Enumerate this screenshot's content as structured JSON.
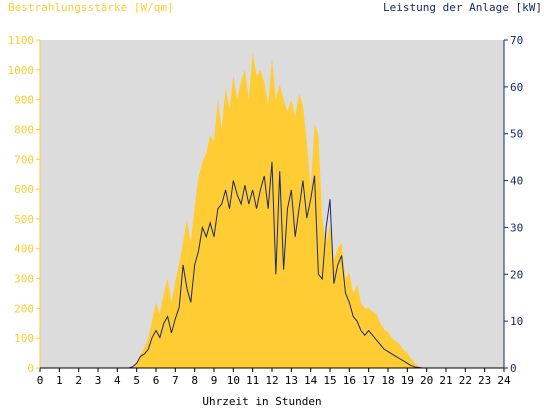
{
  "chart_data": {
    "type": "area",
    "left_axis_title": "Bestrahlungsstärke [W/qm]",
    "right_axis_title": "Leistung der Anlage [kW]",
    "xlabel": "Uhrzeit in Stunden",
    "xlim": [
      0,
      24
    ],
    "ylim_left": [
      0,
      1100
    ],
    "ylim_right": [
      0,
      70
    ],
    "x_ticks": [
      "0",
      "1",
      "2",
      "3",
      "4",
      "5",
      "6",
      "7",
      "8",
      "9",
      "10",
      "11",
      "12",
      "13",
      "14",
      "15",
      "16",
      "17",
      "18",
      "19",
      "20",
      "21",
      "22",
      "23",
      "24"
    ],
    "y_ticks_left": [
      "0",
      "100",
      "200",
      "300",
      "400",
      "500",
      "600",
      "700",
      "800",
      "900",
      "1000",
      "1100"
    ],
    "y_ticks_right": [
      "0",
      "10",
      "20",
      "30",
      "40",
      "50",
      "60",
      "70"
    ],
    "grid": false,
    "colors": {
      "plot_background": "#dcdcdc",
      "irradiance_fill": "#ffcc33",
      "power_line": "#1a2a6c",
      "left_axis_text": "#ffcc33",
      "right_axis_text": "#1a2a6c",
      "x_axis_text": "#000000"
    },
    "series": [
      {
        "axis": "left",
        "style": "area",
        "x": [
          0,
          4.5,
          4.8,
          5.0,
          5.2,
          5.4,
          5.6,
          5.8,
          6.0,
          6.2,
          6.4,
          6.6,
          6.8,
          7.0,
          7.2,
          7.4,
          7.6,
          7.8,
          8.0,
          8.2,
          8.4,
          8.6,
          8.8,
          9.0,
          9.2,
          9.4,
          9.6,
          9.8,
          10.0,
          10.2,
          10.4,
          10.6,
          10.8,
          11.0,
          11.2,
          11.4,
          11.6,
          11.8,
          12.0,
          12.2,
          12.4,
          12.6,
          12.8,
          13.0,
          13.2,
          13.4,
          13.6,
          13.8,
          14.0,
          14.2,
          14.4,
          14.6,
          14.8,
          15.0,
          15.2,
          15.4,
          15.6,
          15.8,
          16.0,
          16.2,
          16.4,
          16.6,
          16.8,
          17.0,
          17.2,
          17.4,
          17.6,
          17.8,
          18.0,
          18.2,
          18.4,
          18.6,
          18.8,
          19.0,
          19.2,
          19.4,
          19.6,
          19.8,
          20.0,
          20.2,
          24
        ],
        "values": [
          0,
          0,
          5,
          20,
          45,
          70,
          100,
          160,
          220,
          180,
          250,
          300,
          220,
          290,
          350,
          420,
          500,
          420,
          540,
          640,
          690,
          720,
          780,
          760,
          900,
          800,
          940,
          870,
          980,
          900,
          960,
          1000,
          900,
          1060,
          980,
          1000,
          960,
          880,
          1040,
          900,
          950,
          900,
          860,
          900,
          840,
          920,
          880,
          760,
          600,
          820,
          780,
          500,
          420,
          480,
          360,
          400,
          420,
          300,
          320,
          250,
          280,
          220,
          200,
          200,
          190,
          180,
          150,
          130,
          120,
          100,
          90,
          80,
          60,
          50,
          30,
          15,
          5,
          0,
          0,
          0,
          0
        ]
      },
      {
        "axis": "right",
        "style": "line",
        "x": [
          0,
          4.6,
          4.8,
          5.0,
          5.2,
          5.4,
          5.6,
          5.8,
          6.0,
          6.2,
          6.4,
          6.6,
          6.8,
          7.0,
          7.2,
          7.4,
          7.6,
          7.8,
          8.0,
          8.2,
          8.4,
          8.6,
          8.8,
          9.0,
          9.2,
          9.4,
          9.6,
          9.8,
          10.0,
          10.2,
          10.4,
          10.6,
          10.8,
          11.0,
          11.2,
          11.4,
          11.6,
          11.8,
          12.0,
          12.2,
          12.4,
          12.6,
          12.8,
          13.0,
          13.2,
          13.4,
          13.6,
          13.8,
          14.0,
          14.2,
          14.4,
          14.6,
          14.8,
          15.0,
          15.2,
          15.4,
          15.6,
          15.8,
          16.0,
          16.2,
          16.4,
          16.6,
          16.8,
          17.0,
          17.2,
          17.4,
          17.6,
          17.8,
          18.0,
          18.2,
          18.4,
          18.6,
          18.8,
          19.0,
          19.2,
          19.4,
          19.6,
          19.8,
          20.0,
          24
        ],
        "values": [
          0,
          0,
          0.3,
          1.0,
          2.5,
          3.0,
          4.0,
          6.5,
          8.0,
          6.5,
          9.5,
          11.0,
          7.5,
          10.5,
          13.0,
          22.0,
          17.0,
          14.0,
          22.0,
          25.0,
          30.0,
          28.0,
          31.0,
          28.0,
          34.0,
          35.0,
          38.0,
          34.0,
          40.0,
          37.0,
          35.0,
          39.0,
          35.0,
          38.0,
          34.0,
          38.0,
          41.0,
          34.0,
          44.0,
          20.0,
          42.0,
          21.0,
          34.0,
          38.0,
          28.0,
          34.0,
          40.0,
          32.0,
          36.0,
          41.0,
          20.0,
          19.0,
          30.0,
          36.0,
          18.0,
          22.0,
          24.0,
          16.0,
          14.0,
          11.0,
          10.0,
          8.0,
          7.0,
          8.0,
          7.0,
          6.0,
          5.0,
          4.0,
          3.5,
          3.0,
          2.5,
          2.0,
          1.5,
          1.0,
          0.5,
          0.2,
          0.1,
          0,
          0,
          0
        ]
      }
    ]
  }
}
